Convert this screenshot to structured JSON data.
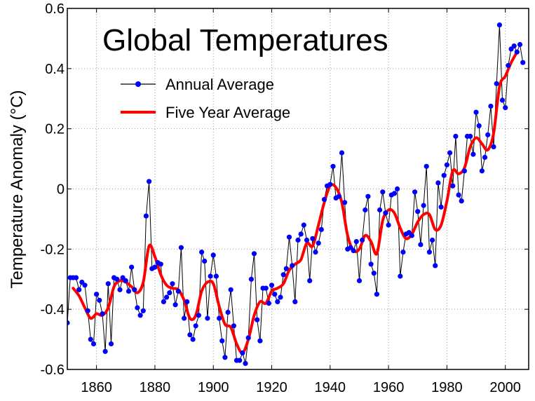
{
  "chart_data": {
    "type": "line",
    "title": "Global Temperatures",
    "xlabel": "",
    "ylabel": "Temperature Anomaly (°C)",
    "xlim": [
      1850,
      2008
    ],
    "ylim": [
      -0.6,
      0.6
    ],
    "xticks": [
      1860,
      1880,
      1900,
      1920,
      1940,
      1960,
      1980,
      2000
    ],
    "yticks": [
      -0.6,
      -0.4,
      -0.2,
      0,
      0.2,
      0.4,
      0.6
    ],
    "ytick_labels": [
      "-0.6",
      "-0.4",
      "-0.2",
      "0",
      "0.2",
      "0.4",
      "0.6"
    ],
    "grid": true,
    "legend_position": "top-left",
    "series": [
      {
        "name": "Annual Average",
        "style": "line-with-markers",
        "line_color": "#000000",
        "marker_color": "#0000ff",
        "x": [
          1850,
          1851,
          1852,
          1853,
          1854,
          1855,
          1856,
          1857,
          1858,
          1859,
          1860,
          1861,
          1862,
          1863,
          1864,
          1865,
          1866,
          1867,
          1868,
          1869,
          1870,
          1871,
          1872,
          1873,
          1874,
          1875,
          1876,
          1877,
          1878,
          1879,
          1880,
          1881,
          1882,
          1883,
          1884,
          1885,
          1886,
          1887,
          1888,
          1889,
          1890,
          1891,
          1892,
          1893,
          1894,
          1895,
          1896,
          1897,
          1898,
          1899,
          1900,
          1901,
          1902,
          1903,
          1904,
          1905,
          1906,
          1907,
          1908,
          1909,
          1910,
          1911,
          1912,
          1913,
          1914,
          1915,
          1916,
          1917,
          1918,
          1919,
          1920,
          1921,
          1922,
          1923,
          1924,
          1925,
          1926,
          1927,
          1928,
          1929,
          1930,
          1931,
          1932,
          1933,
          1934,
          1935,
          1936,
          1937,
          1938,
          1939,
          1940,
          1941,
          1942,
          1943,
          1944,
          1945,
          1946,
          1947,
          1948,
          1949,
          1950,
          1951,
          1952,
          1953,
          1954,
          1955,
          1956,
          1957,
          1958,
          1959,
          1960,
          1961,
          1962,
          1963,
          1964,
          1965,
          1966,
          1967,
          1968,
          1969,
          1970,
          1971,
          1972,
          1973,
          1974,
          1975,
          1976,
          1977,
          1978,
          1979,
          1980,
          1981,
          1982,
          1983,
          1984,
          1985,
          1986,
          1987,
          1988,
          1989,
          1990,
          1991,
          1992,
          1993,
          1994,
          1995,
          1996,
          1997,
          1998,
          1999,
          2000,
          2001,
          2002,
          2003,
          2004,
          2005,
          2006
        ],
        "y": [
          -0.445,
          -0.295,
          -0.295,
          -0.295,
          -0.335,
          -0.31,
          -0.32,
          -0.405,
          -0.5,
          -0.515,
          -0.35,
          -0.37,
          -0.415,
          -0.54,
          -0.315,
          -0.515,
          -0.295,
          -0.3,
          -0.335,
          -0.295,
          -0.305,
          -0.34,
          -0.26,
          -0.335,
          -0.395,
          -0.42,
          -0.405,
          -0.09,
          0.025,
          -0.265,
          -0.26,
          -0.245,
          -0.25,
          -0.375,
          -0.36,
          -0.345,
          -0.315,
          -0.385,
          -0.34,
          -0.195,
          -0.43,
          -0.375,
          -0.485,
          -0.5,
          -0.455,
          -0.42,
          -0.21,
          -0.24,
          -0.43,
          -0.29,
          -0.22,
          -0.29,
          -0.43,
          -0.505,
          -0.56,
          -0.41,
          -0.335,
          -0.455,
          -0.57,
          -0.57,
          -0.545,
          -0.58,
          -0.495,
          -0.3,
          -0.215,
          -0.435,
          -0.505,
          -0.33,
          -0.33,
          -0.38,
          -0.32,
          -0.35,
          -0.375,
          -0.36,
          -0.285,
          -0.265,
          -0.16,
          -0.255,
          -0.375,
          -0.17,
          -0.15,
          -0.12,
          -0.17,
          -0.305,
          -0.165,
          -0.21,
          -0.18,
          -0.135,
          -0.035,
          0.01,
          0.015,
          0.075,
          -0.03,
          -0.025,
          0.12,
          -0.045,
          -0.2,
          -0.195,
          -0.205,
          -0.175,
          -0.305,
          -0.17,
          -0.07,
          -0.025,
          -0.25,
          -0.28,
          -0.35,
          -0.07,
          -0.01,
          -0.08,
          -0.12,
          -0.02,
          -0.015,
          0.0,
          -0.29,
          -0.21,
          -0.15,
          -0.145,
          -0.155,
          -0.01,
          -0.075,
          -0.185,
          -0.055,
          0.075,
          -0.21,
          -0.17,
          -0.255,
          0.02,
          -0.06,
          0.045,
          0.08,
          0.12,
          0.01,
          0.175,
          -0.02,
          -0.04,
          0.06,
          0.175,
          0.175,
          0.115,
          0.255,
          0.21,
          0.06,
          0.105,
          0.18,
          0.275,
          0.14,
          0.35,
          0.545,
          0.295,
          0.27,
          0.41,
          0.465,
          0.475,
          0.455,
          0.48,
          0.42
        ]
      },
      {
        "name": "Five Year Average",
        "style": "line",
        "line_color": "#ff0000",
        "x": [
          1852,
          1854,
          1856,
          1858,
          1860,
          1862,
          1864,
          1866,
          1868,
          1870,
          1872,
          1874,
          1876,
          1878,
          1880,
          1882,
          1884,
          1886,
          1888,
          1890,
          1892,
          1894,
          1896,
          1898,
          1900,
          1902,
          1904,
          1906,
          1908,
          1910,
          1912,
          1914,
          1916,
          1918,
          1920,
          1922,
          1924,
          1926,
          1928,
          1930,
          1932,
          1934,
          1936,
          1938,
          1940,
          1942,
          1944,
          1946,
          1948,
          1950,
          1952,
          1954,
          1956,
          1958,
          1960,
          1962,
          1964,
          1966,
          1968,
          1970,
          1972,
          1974,
          1976,
          1978,
          1980,
          1982,
          1984,
          1986,
          1988,
          1990,
          1992,
          1994,
          1996,
          1998,
          2000,
          2002,
          2004
        ],
        "y": [
          -0.33,
          -0.355,
          -0.395,
          -0.43,
          -0.415,
          -0.42,
          -0.395,
          -0.325,
          -0.305,
          -0.31,
          -0.325,
          -0.345,
          -0.31,
          -0.19,
          -0.225,
          -0.285,
          -0.32,
          -0.33,
          -0.335,
          -0.37,
          -0.43,
          -0.42,
          -0.34,
          -0.31,
          -0.315,
          -0.39,
          -0.45,
          -0.46,
          -0.515,
          -0.545,
          -0.5,
          -0.42,
          -0.375,
          -0.38,
          -0.34,
          -0.33,
          -0.315,
          -0.27,
          -0.25,
          -0.235,
          -0.18,
          -0.19,
          -0.12,
          -0.045,
          0.01,
          0.005,
          -0.045,
          -0.155,
          -0.205,
          -0.2,
          -0.155,
          -0.175,
          -0.215,
          -0.105,
          -0.07,
          -0.08,
          -0.13,
          -0.165,
          -0.15,
          -0.11,
          -0.085,
          -0.085,
          -0.135,
          -0.12,
          -0.04,
          0.06,
          0.05,
          0.07,
          0.14,
          0.17,
          0.15,
          0.13,
          0.185,
          0.34,
          0.375,
          0.42,
          0.455
        ]
      }
    ]
  },
  "colors": {
    "background": "#ffffff",
    "grid": "#9a9a9a",
    "annual_line": "#000000",
    "annual_marker": "#0000ff",
    "five_year_line": "#ff0000"
  }
}
